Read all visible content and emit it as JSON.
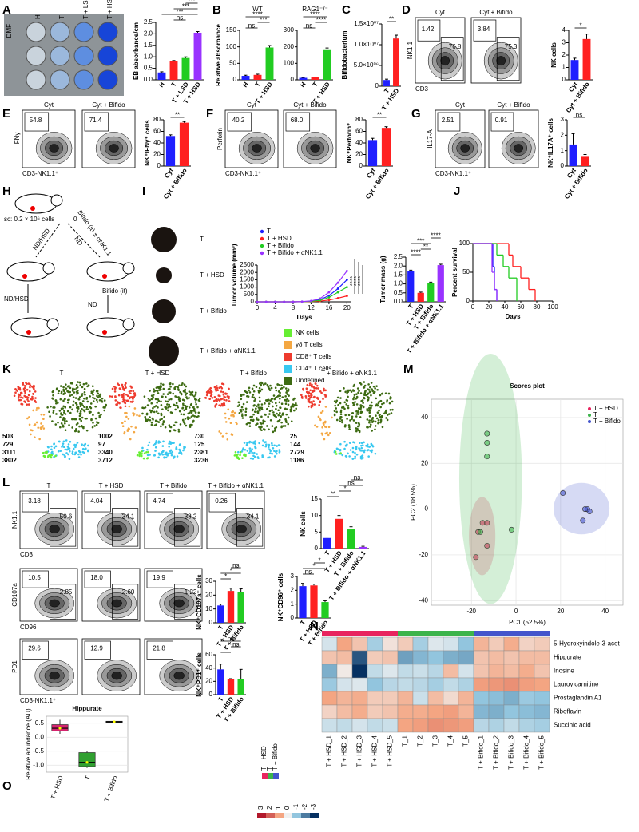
{
  "A": {
    "letter": "A",
    "plate_labels": [
      "DMF",
      "H",
      "T",
      "T + LSD",
      "T + HSD"
    ],
    "bar": {
      "ylabel": "EB absorbance/cm",
      "categories": [
        "H",
        "T",
        "T + LSD",
        "T + HSD"
      ],
      "values": [
        0.32,
        0.8,
        0.95,
        2.05
      ],
      "errors": [
        0.03,
        0.04,
        0.05,
        0.05
      ],
      "colors": [
        "#1f1fff",
        "#ff2020",
        "#22cc22",
        "#9933ff"
      ],
      "ylim": [
        0,
        2.5
      ],
      "yticks": [
        {
          "value": 0,
          "label": "0.0"
        },
        {
          "value": 0.5,
          "label": "0.5"
        },
        {
          "value": 1,
          "label": "1.0"
        },
        {
          "value": 1.5,
          "label": "1.5"
        },
        {
          "value": 2,
          "label": "2.0"
        },
        {
          "value": 2.5,
          "label": "2.5"
        }
      ],
      "sig": [
        "ns",
        "***",
        "***",
        "***"
      ]
    }
  },
  "B": {
    "letter": "B",
    "wt": {
      "title": "WT",
      "ylabel": "Relative absorbance",
      "categories": [
        "H",
        "T",
        "T + HSD"
      ],
      "values": [
        12,
        15,
        98
      ],
      "errors": [
        2,
        2,
        6
      ],
      "colors": [
        "#1f1fff",
        "#ff2020",
        "#22cc22"
      ],
      "ylim": [
        0,
        150
      ],
      "yticks": [
        0,
        50,
        100,
        150
      ],
      "sig": [
        "ns",
        "***",
        "****"
      ]
    },
    "rag": {
      "title": "RAG1⁻/⁻",
      "categories": [
        "H",
        "T",
        "T + HSD"
      ],
      "values": [
        12,
        15,
        185
      ],
      "errors": [
        2,
        2,
        8
      ],
      "colors": [
        "#1f1fff",
        "#ff2020",
        "#22cc22"
      ],
      "ylim": [
        0,
        300
      ],
      "yticks": [
        0,
        100,
        200,
        300
      ],
      "sig": [
        "ns",
        "****",
        "****"
      ]
    }
  },
  "C": {
    "letter": "C",
    "bar": {
      "ylabel": "Bifidobacterium",
      "categories": [
        "T",
        "T + HSD"
      ],
      "values": [
        1500000,
        11500000
      ],
      "errors": [
        200000,
        800000
      ],
      "colors": [
        "#1f1fff",
        "#ff2020"
      ],
      "ylim": [
        0,
        15000000
      ],
      "yticks": [
        {
          "value": 0,
          "label": "0"
        },
        {
          "value": 5000000,
          "label": "5.0×10⁰⁶"
        },
        {
          "value": 10000000,
          "label": "1.0×10⁰⁷"
        },
        {
          "value": 15000000,
          "label": "1.5×10⁰⁷"
        }
      ],
      "sig": [
        "**"
      ]
    }
  },
  "D": {
    "letter": "D",
    "flow": {
      "ylabel": "NK1.1",
      "xlabel": "CD3",
      "plots": [
        {
          "title": "Cyt",
          "gates": [
            "1.42",
            "76.8"
          ]
        },
        {
          "title": "Cyt + Bifido",
          "gates": [
            "3.84",
            "75.3"
          ]
        }
      ]
    },
    "bar": {
      "ylabel": "NK cells",
      "categories": [
        "Cyt",
        "Cyt + Bifido"
      ],
      "values": [
        1.6,
        3.3
      ],
      "errors": [
        0.15,
        0.4
      ],
      "colors": [
        "#1f1fff",
        "#ff2020"
      ],
      "ylim": [
        0,
        4
      ],
      "yticks": [
        0,
        1,
        2,
        3,
        4
      ],
      "sig": [
        "*"
      ]
    }
  },
  "E": {
    "letter": "E",
    "flow": {
      "ylabel": "IFNγ",
      "xlabel": "CD3-NK1.1⁺",
      "plots": [
        {
          "title": "Cyt",
          "gates": [
            "54.8"
          ]
        },
        {
          "title": "Cyt + Bifido",
          "gates": [
            "71.4"
          ]
        }
      ]
    },
    "bar": {
      "ylabel": "NK⁺IFNγ⁺ cells",
      "categories": [
        "Cyt",
        "Cyt + Bifido"
      ],
      "values": [
        52,
        75
      ],
      "errors": [
        2,
        2
      ],
      "colors": [
        "#1f1fff",
        "#ff2020"
      ],
      "ylim": [
        0,
        80
      ],
      "yticks": [
        0,
        20,
        40,
        60,
        80
      ],
      "sig": [
        "**"
      ]
    }
  },
  "F": {
    "letter": "F",
    "flow": {
      "ylabel": "Perforin",
      "xlabel": "CD3-NK1.1⁺",
      "plots": [
        {
          "title": "Cyt",
          "gates": [
            "40.2"
          ]
        },
        {
          "title": "Cyt + Bifido",
          "gates": [
            "68.0"
          ]
        }
      ]
    },
    "bar": {
      "ylabel": "NK⁺Perforin⁺",
      "categories": [
        "Cyt",
        "Cyt + Bifido"
      ],
      "values": [
        45,
        66
      ],
      "errors": [
        3,
        2
      ],
      "colors": [
        "#1f1fff",
        "#ff2020"
      ],
      "ylim": [
        0,
        80
      ],
      "yticks": [
        0,
        20,
        40,
        60,
        80
      ],
      "sig": [
        "**"
      ]
    }
  },
  "G": {
    "letter": "G",
    "flow": {
      "ylabel": "IL17-A",
      "xlabel": "CD3-NK1.1⁺",
      "plots": [
        {
          "title": "Cyt",
          "gates": [
            "2.51"
          ]
        },
        {
          "title": "Cyt + Bifido",
          "gates": [
            "0.91"
          ]
        }
      ]
    },
    "bar": {
      "ylabel": "NK⁺IL17A⁺ cells",
      "categories": [
        "Cyt",
        "Cyt + Bifido"
      ],
      "values": [
        1.4,
        0.6
      ],
      "errors": [
        0.7,
        0.15
      ],
      "colors": [
        "#1f1fff",
        "#ff2020"
      ],
      "ylim": [
        0,
        3
      ],
      "yticks": [
        0,
        1,
        2,
        3
      ],
      "sig": [
        "ns"
      ]
    }
  },
  "H": {
    "letter": "H",
    "cells": "sc: 0.2 × 10⁶ cells",
    "day": "0",
    "left_arrow": "ND/HSD",
    "mid_arrow": "ND",
    "right_arrow": "Bifido (it) ± αNK1.1",
    "bifido": "Bifido (it)",
    "down_left": "ND/HSD",
    "down_right": "ND"
  },
  "I": {
    "letter": "I",
    "tumors": [
      "T",
      "T + HSD",
      "T + Bifido",
      "T + Bifido + αNK1.1"
    ],
    "line": {
      "ylabel": "Tumor volume (mm³)",
      "xlabel": "Days",
      "x": [
        0,
        2,
        4,
        6,
        8,
        10,
        12,
        14,
        16,
        18,
        20
      ],
      "xlim": [
        0,
        21
      ],
      "xticks": [
        0,
        4,
        8,
        12,
        16,
        20
      ],
      "ylim": [
        0,
        2500
      ],
      "yticks": [
        0,
        500,
        1000,
        1500,
        2000,
        2500
      ],
      "sig": [
        "****",
        "****",
        "****"
      ],
      "series": [
        {
          "name": "T",
          "color": "#1f1fff",
          "values": [
            0,
            0,
            0,
            0,
            0,
            10,
            40,
            150,
            420,
            900,
            1500
          ]
        },
        {
          "name": "T + HSD",
          "color": "#ff2020",
          "values": [
            0,
            0,
            0,
            0,
            0,
            5,
            15,
            50,
            120,
            250,
            400
          ]
        },
        {
          "name": "T + Bifido",
          "color": "#22cc22",
          "values": [
            0,
            0,
            0,
            0,
            0,
            8,
            30,
            100,
            300,
            650,
            1000
          ]
        },
        {
          "name": "T + Bifido + αNK1.1",
          "color": "#9933ff",
          "values": [
            0,
            0,
            0,
            0,
            0,
            15,
            60,
            220,
            650,
            1300,
            2100
          ]
        }
      ]
    },
    "bar": {
      "ylabel": "Tumor mass (g)",
      "categories": [
        "T",
        "T + HSD",
        "T + Bifido",
        "T + Bifido + αNK1.1"
      ],
      "values": [
        1.72,
        0.5,
        1.05,
        2.05
      ],
      "errors": [
        0.05,
        0.04,
        0.05,
        0.05
      ],
      "colors": [
        "#1f1fff",
        "#ff2020",
        "#22cc22",
        "#9933ff"
      ],
      "ylim": [
        0,
        2.5
      ],
      "yticks": [
        {
          "value": 0,
          "label": "0.0"
        },
        {
          "value": 0.5,
          "label": "0.5"
        },
        {
          "value": 1,
          "label": "1.0"
        },
        {
          "value": 1.5,
          "label": "1.5"
        },
        {
          "value": 2,
          "label": "2.0"
        },
        {
          "value": 2.5,
          "label": "2.5"
        }
      ],
      "sig": [
        "****",
        "**",
        "***",
        "****"
      ]
    }
  },
  "J": {
    "letter": "J",
    "ylabel": "Percent survival",
    "xlabel": "Days",
    "xlim": [
      0,
      100
    ],
    "xticks": [
      0,
      20,
      40,
      60,
      80,
      100
    ],
    "ylim": [
      0,
      100
    ],
    "yticks": [
      0,
      50,
      100
    ],
    "series": [
      {
        "color": "#1f1fff",
        "x": [
          0,
          25,
          27,
          30
        ],
        "values": [
          100,
          60,
          20,
          0
        ]
      },
      {
        "color": "#ff2020",
        "x": [
          0,
          45,
          50,
          60,
          70,
          78
        ],
        "values": [
          100,
          80,
          60,
          40,
          20,
          0
        ]
      },
      {
        "color": "#22cc22",
        "x": [
          0,
          30,
          38,
          45,
          55
        ],
        "values": [
          100,
          80,
          60,
          40,
          0
        ]
      },
      {
        "color": "#9933ff",
        "x": [
          0,
          24,
          27,
          30
        ],
        "values": [
          100,
          50,
          20,
          0
        ]
      }
    ]
  },
  "K": {
    "letter": "K",
    "legend": [
      {
        "name": "NK cells",
        "color": "#66ee33"
      },
      {
        "name": "γδ T cells",
        "color": "#f4a742"
      },
      {
        "name": "CD8⁺ T cells",
        "color": "#ee3b2e"
      },
      {
        "name": "CD4⁺ T cells",
        "color": "#38c8f0"
      },
      {
        "name": "Undefined",
        "color": "#3d6b12"
      }
    ],
    "panels": [
      {
        "title": "T",
        "counts": [
          503,
          729,
          3111,
          3802
        ]
      },
      {
        "title": "T + HSD",
        "counts": [
          1002,
          97,
          3340,
          3712
        ]
      },
      {
        "title": "T + Bifido",
        "counts": [
          730,
          125,
          2381,
          3236
        ]
      },
      {
        "title": "T + Bifido + αNK1.1",
        "counts": [
          25,
          144,
          2729,
          1186
        ]
      }
    ]
  },
  "L": {
    "letter": "L",
    "rows": [
      {
        "ylabel": "NK1.1",
        "xlabel": "CD3",
        "plots": [
          {
            "title": "T",
            "gates": [
              "3.18",
              "50.6"
            ]
          },
          {
            "title": "T + HSD",
            "gates": [
              "4.04",
              "34.1"
            ]
          },
          {
            "title": "T + Bifido",
            "gates": [
              "4.74",
              "38.2"
            ]
          },
          {
            "title": "T + Bifido + αNK1.1",
            "gates": [
              "0.26",
              "34.1"
            ]
          }
        ]
      },
      {
        "ylabel": "CD107a",
        "xlabel": "CD96",
        "plots": [
          {
            "gates": [
              "10.5",
              "2.85"
            ]
          },
          {
            "gates": [
              "18.0",
              "2.60"
            ]
          },
          {
            "gates": [
              "19.9",
              "1.22"
            ]
          }
        ]
      },
      {
        "ylabel": "PD1",
        "xlabel": "CD3-NK1.1⁺",
        "plots": [
          {
            "gates": [
              "29.6"
            ]
          },
          {
            "gates": [
              "12.9"
            ]
          },
          {
            "gates": [
              "21.8"
            ]
          }
        ]
      }
    ],
    "nk": {
      "ylabel": "NK cells",
      "categories": [
        "T",
        "T + HSD",
        "T + Bifido",
        "T + Bifido + αNK1.1"
      ],
      "values": [
        3.2,
        9,
        5.8,
        0.5
      ],
      "errors": [
        0.3,
        1,
        0.8,
        0.2
      ],
      "colors": [
        "#1f1fff",
        "#ff2020",
        "#22cc22",
        "#9933ff"
      ],
      "ylim": [
        0,
        15
      ],
      "yticks": [
        0,
        5,
        10,
        15
      ],
      "sig": [
        "**",
        "*",
        "ns",
        "ns"
      ]
    },
    "cd107a": {
      "ylabel": "NK⁺CD107a⁺ cells",
      "categories": [
        "T",
        "T + HSD",
        "T + Bifido"
      ],
      "values": [
        12.5,
        23,
        22.5
      ],
      "errors": [
        1,
        2,
        2
      ],
      "colors": [
        "#1f1fff",
        "#ff2020",
        "#22cc22"
      ],
      "ylim": [
        0,
        30
      ],
      "yticks": [
        0,
        10,
        20,
        30
      ],
      "sig": [
        "*",
        "*",
        "ns"
      ]
    },
    "cd96": {
      "ylabel": "NK⁺CD96⁺ cells",
      "categories": [
        "T",
        "T + HSD",
        "T + Bifido"
      ],
      "values": [
        2.3,
        2.35,
        1.15
      ],
      "errors": [
        0.2,
        0.1,
        0.1
      ],
      "colors": [
        "#1f1fff",
        "#ff2020",
        "#22cc22"
      ],
      "ylim": [
        0,
        3
      ],
      "yticks": [
        0,
        1,
        2,
        3
      ],
      "sig": [
        "ns",
        "*",
        "*"
      ]
    },
    "pd1": {
      "ylabel": "NK⁺PD1⁺ cells",
      "categories": [
        "T",
        "T + HSD",
        "T + Bifido"
      ],
      "values": [
        38,
        23,
        23
      ],
      "errors": [
        8,
        1,
        15
      ],
      "colors": [
        "#1f1fff",
        "#ff2020",
        "#22cc22"
      ],
      "ylim": [
        0,
        60
      ],
      "yticks": [
        0,
        20,
        40,
        60
      ],
      "sig": [
        "*",
        "ns",
        "ns"
      ]
    }
  },
  "M": {
    "letter": "M",
    "title": "Scores plot",
    "xlabel": "PC1 (52.5%)",
    "ylabel": "PC2 (18.5%)",
    "xlim": [
      -38,
      48
    ],
    "xticks": [
      -20,
      0,
      20,
      40
    ],
    "ylim": [
      -42,
      48
    ],
    "yticks": [
      -40,
      -20,
      0,
      20,
      40
    ],
    "groups": [
      {
        "name": "T + HSD",
        "color": "#e8245f",
        "x": [
          -18,
          -17,
          -15,
          -13,
          -13
        ],
        "y": [
          -21,
          -10,
          -6,
          -6,
          -16
        ]
      },
      {
        "name": "T",
        "color": "#3cb44b",
        "x": [
          -13,
          -13,
          -13,
          -16,
          -2
        ],
        "y": [
          33,
          29,
          23,
          -10,
          -9
        ]
      },
      {
        "name": "T + Bifido",
        "color": "#4455cc",
        "x": [
          21,
          31,
          32,
          33,
          30
        ],
        "y": [
          7,
          0,
          0,
          -1,
          -5
        ]
      }
    ]
  },
  "N": {
    "letter": "N",
    "rows": [
      "5-Hydroxyindole-3-acet",
      "Hippurate",
      "Inosine",
      "Lauroylcarnitine",
      "Prostaglandin A1",
      "Riboflavin",
      "Succinic acid"
    ],
    "columns": [
      "T + HSD_1",
      "T + HSD_2",
      "T + HSD_3",
      "T + HSD_4",
      "T + HSD_5",
      "T_1",
      "T_2",
      "T_3",
      "T_4",
      "T_5",
      "T + Bifido_1",
      "T + Bifido_2",
      "T + Bifido_3",
      "T + Bifido_4",
      "T + Bifido_5"
    ],
    "groups": [
      {
        "name": "T + HSD",
        "color": "#e8245f"
      },
      {
        "name": "T",
        "color": "#3cb44b"
      },
      {
        "name": "T + Bifido",
        "color": "#4455cc"
      }
    ],
    "scale": [
      3,
      2,
      1,
      0,
      -1,
      -2,
      -3
    ],
    "values": [
      [
        -0.3,
        1.0,
        0.6,
        -0.8,
        0.2,
        0.5,
        -0.8,
        -0.2,
        -0.3,
        -1.0,
        0.8,
        0.5,
        0.9,
        0.4,
        0.5
      ],
      [
        0.6,
        0.7,
        -2.5,
        0.5,
        0.6,
        -1.5,
        -1.2,
        -1.0,
        -1.3,
        -1.4,
        0.6,
        0.7,
        0.6,
        0.7,
        0.7
      ],
      [
        -1.3,
        0.1,
        -3.0,
        -0.5,
        -0.2,
        -0.5,
        -0.4,
        -0.6,
        0.7,
        -0.3,
        0.6,
        0.8,
        0.7,
        0.9,
        0.6
      ],
      [
        -0.9,
        -0.3,
        -0.2,
        -1.0,
        -0.6,
        -0.5,
        -0.6,
        -0.8,
        -0.5,
        -0.7,
        1.1,
        1.2,
        1.3,
        1.1,
        1.0
      ],
      [
        1.0,
        0.8,
        0.9,
        0.5,
        0.5,
        0.8,
        -0.4,
        0.7,
        0.3,
        0.8,
        -1.0,
        -1.1,
        -1.3,
        -0.9,
        -1.0
      ],
      [
        0.4,
        0.7,
        0.9,
        0.5,
        0.6,
        0.9,
        0.9,
        1.0,
        1.1,
        0.8,
        -1.2,
        -1.3,
        -1.0,
        -1.1,
        -1.2
      ],
      [
        -0.4,
        -0.5,
        -0.3,
        -0.5,
        -0.4,
        1.0,
        1.1,
        1.3,
        1.2,
        1.1,
        -0.6,
        -0.7,
        -0.5,
        -0.7,
        -0.8
      ]
    ]
  },
  "O": {
    "letter": "O",
    "title": "Hippurate",
    "ylabel": "Relative abundance (AU)",
    "ylim": [
      -1.25,
      0.75
    ],
    "yticks": [
      {
        "value": -1,
        "label": "-1.0"
      },
      {
        "value": -0.5,
        "label": "-0.5"
      },
      {
        "value": 0,
        "label": "0.0"
      },
      {
        "value": 0.5,
        "label": "0.5"
      }
    ],
    "boxes": [
      {
        "name": "T + HSD",
        "color": "#d6246e",
        "min": 0.12,
        "q1": 0.22,
        "median": 0.32,
        "q3": 0.45,
        "max": 0.62
      },
      {
        "name": "T",
        "color": "#30a030",
        "min": -1.1,
        "q1": -1.05,
        "median": -0.9,
        "q3": -0.55,
        "max": -0.5
      },
      {
        "name": "T + Bifido",
        "color": "#5050cc",
        "min": 0.52,
        "q1": 0.53,
        "median": 0.55,
        "q3": 0.57,
        "max": 0.58
      }
    ]
  }
}
